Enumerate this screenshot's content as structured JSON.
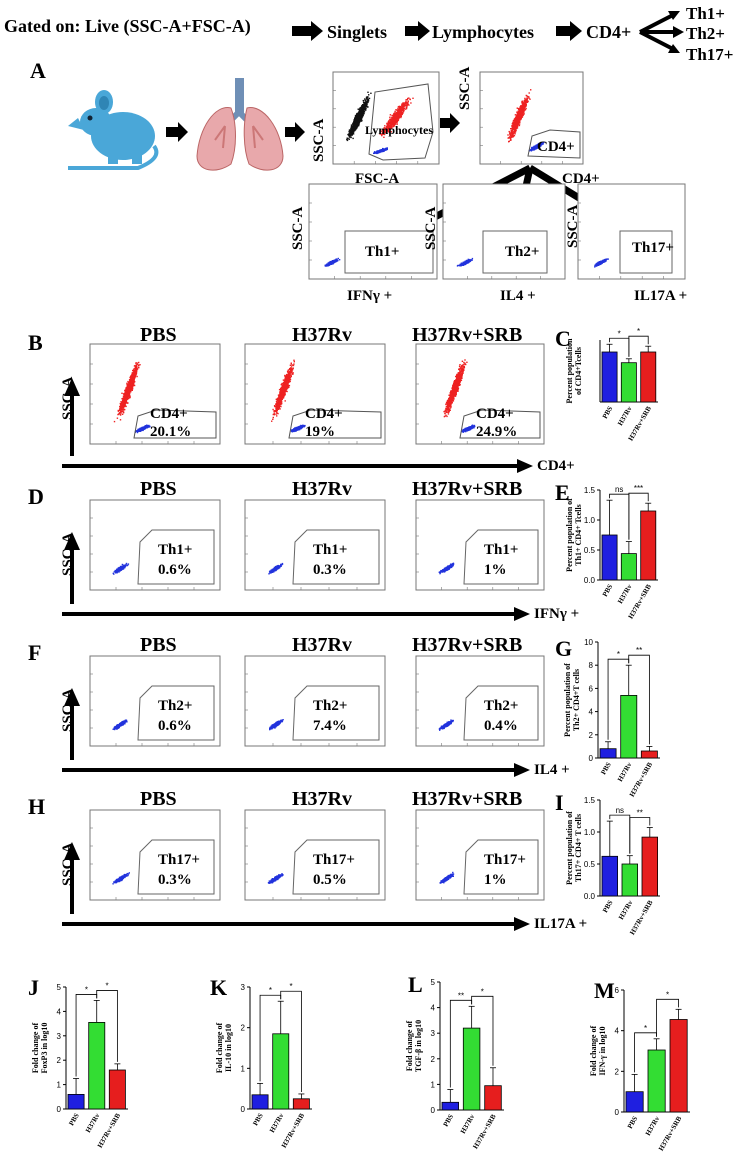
{
  "header": {
    "gated_on": "Gated on: Live (SSC-A+FSC-A)",
    "singlets": "Singlets",
    "lymphocytes": "Lymphocytes",
    "cd4": "CD4+",
    "th1": "Th1+",
    "th2": "Th2+",
    "th17": "Th17+"
  },
  "colors": {
    "pbs": "#1f1fe0",
    "h37rv": "#33dd33",
    "srb": "#e61e1e",
    "dots_red": "#ee2222",
    "dots_blue": "#2233dd"
  },
  "panel_a": {
    "label": "A",
    "lymph_gate": "Lymphocytes",
    "ssc": "SSC-A",
    "fsc": "FSC-A",
    "cd4_gate": "CD4+",
    "cd4_axis": "CD4+",
    "th1": "Th1+",
    "th2": "Th2+",
    "th17": "Th17+",
    "ifng": "IFNγ +",
    "il4": "IL4 +",
    "il17a": "IL17A +"
  },
  "groups": [
    "PBS",
    "H37Rv",
    "H37Rv+SRB"
  ],
  "flow_rows": [
    {
      "label": "B",
      "ylabel": "SSC-A",
      "xlabel": "CD4+",
      "gate": "CD4+",
      "values": [
        "20.1%",
        "19%",
        "24.9%"
      ]
    },
    {
      "label": "D",
      "ylabel": "SSC-A",
      "xlabel": "IFNγ +",
      "gate": "Th1+",
      "values": [
        "0.6%",
        "0.3%",
        "1%"
      ]
    },
    {
      "label": "F",
      "ylabel": "SSC-A",
      "xlabel": "IL4 +",
      "gate": "Th2+",
      "values": [
        "0.6%",
        "7.4%",
        "0.4%"
      ]
    },
    {
      "label": "H",
      "ylabel": "SSC-A",
      "xlabel": "IL17A +",
      "gate": "Th17+",
      "values": [
        "0.3%",
        "0.5%",
        "1%"
      ]
    }
  ],
  "chart_data": [
    {
      "panel": "C",
      "type": "bar",
      "ylabel": "Percent population of CD4+Tcells",
      "categories": [
        "PBS",
        "H37Rv",
        "H37Rv+SRB"
      ],
      "values": [
        25.8,
        20.3,
        25.8
      ],
      "errors": [
        4,
        2,
        3
      ],
      "ylim": [
        0,
        32
      ],
      "ticks": [],
      "sig": [
        "*",
        "*"
      ]
    },
    {
      "panel": "E",
      "type": "bar",
      "ylabel": "Percent population of Th1+ CD4+ Tcells",
      "categories": [
        "PBS",
        "H37Rv",
        "H37Rv+SRB"
      ],
      "values": [
        0.75,
        0.44,
        1.15
      ],
      "errors": [
        0.58,
        0.2,
        0.13
      ],
      "ylim": [
        0,
        1.5
      ],
      "ticks": [
        "0.0",
        "0.5",
        "1.0",
        "1.5"
      ],
      "sig": [
        "ns",
        "***"
      ]
    },
    {
      "panel": "G",
      "type": "bar",
      "ylabel": "Percent population of Th2+ CD4+T cells",
      "categories": [
        "PBS",
        "H37Rv",
        "H37Rv+SRB"
      ],
      "values": [
        0.8,
        5.4,
        0.6
      ],
      "errors": [
        0.6,
        2.6,
        0.4
      ],
      "ylim": [
        0,
        10
      ],
      "ticks": [
        "0",
        "2",
        "4",
        "6",
        "8",
        "10"
      ],
      "sig": [
        "*",
        "**"
      ]
    },
    {
      "panel": "I",
      "type": "bar",
      "ylabel": "Percent population of Th17+ CD4+ T cells",
      "categories": [
        "PBS",
        "H37Rv",
        "H37Rv+SRB"
      ],
      "values": [
        0.62,
        0.5,
        0.92
      ],
      "errors": [
        0.55,
        0.13,
        0.15
      ],
      "ylim": [
        0,
        1.5
      ],
      "ticks": [
        "0.0",
        "0.5",
        "1.0",
        "1.5"
      ],
      "sig": [
        "ns",
        "**"
      ]
    },
    {
      "panel": "J",
      "type": "bar",
      "ylabel": "Fold change of FoxP3 in log10",
      "categories": [
        "PBS",
        "H37Rv",
        "H37Rv+SRB"
      ],
      "values": [
        0.6,
        3.55,
        1.6
      ],
      "errors": [
        0.65,
        0.9,
        0.25
      ],
      "ylim": [
        0,
        5
      ],
      "ticks": [
        "0",
        "1",
        "2",
        "3",
        "4",
        "5"
      ],
      "sig": [
        "*",
        "*"
      ]
    },
    {
      "panel": "K",
      "type": "bar",
      "ylabel": "Fold change of IL-10 in log10",
      "categories": [
        "PBS",
        "H37Rv",
        "H37Rv+SRB"
      ],
      "values": [
        0.35,
        1.85,
        0.25
      ],
      "errors": [
        0.28,
        0.8,
        0.12
      ],
      "ylim": [
        0,
        3
      ],
      "ticks": [
        "0",
        "1",
        "2",
        "3"
      ],
      "sig": [
        "*",
        "*"
      ]
    },
    {
      "panel": "L",
      "type": "bar",
      "ylabel": "Fold change of TGF-β in log10",
      "categories": [
        "PBS",
        "H37Rv",
        "H37Rv+SRB"
      ],
      "values": [
        0.3,
        3.2,
        0.95
      ],
      "errors": [
        0.5,
        0.85,
        0.7
      ],
      "ylim": [
        0,
        5
      ],
      "ticks": [
        "0",
        "1",
        "2",
        "3",
        "4",
        "5"
      ],
      "sig": [
        "**",
        "*"
      ]
    },
    {
      "panel": "M",
      "type": "bar",
      "ylabel": "Fold change of IFN-γ in log10",
      "categories": [
        "PBS",
        "H37Rv",
        "H37Rv+SRB"
      ],
      "values": [
        1.0,
        3.05,
        4.55
      ],
      "errors": [
        0.85,
        0.55,
        0.5
      ],
      "ylim": [
        0,
        6
      ],
      "ticks": [
        "0",
        "2",
        "4",
        "6"
      ],
      "sig": [
        "*",
        "*"
      ]
    }
  ]
}
